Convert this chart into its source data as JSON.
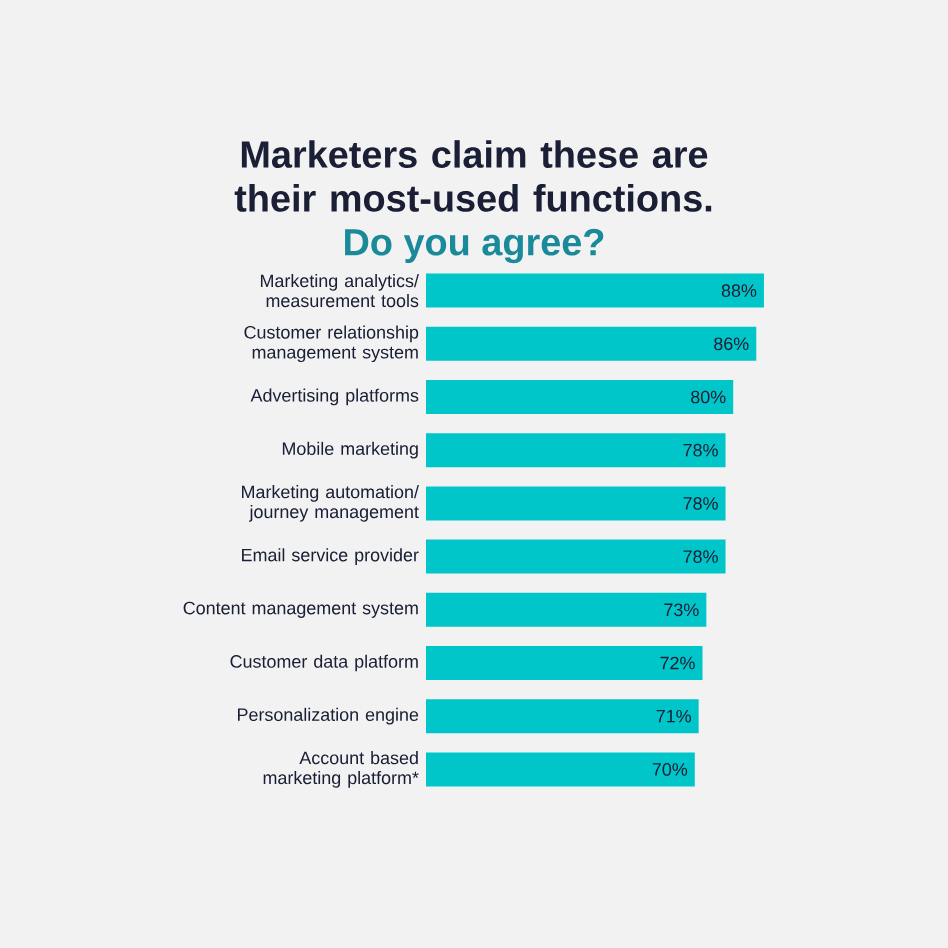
{
  "chart_data": {
    "type": "bar",
    "orientation": "horizontal",
    "title": "Marketers claim these are their most-used functions.",
    "subtitle": "Do you agree?",
    "categories": [
      "Marketing analytics/ measurement tools",
      "Customer relationship management system",
      "Advertising platforms",
      "Mobile marketing",
      "Marketing automation/ journey management",
      "Email service provider",
      "Content management system",
      "Customer data platform",
      "Personalization engine",
      "Account based marketing platform*"
    ],
    "values": [
      88,
      86,
      80,
      78,
      78,
      78,
      73,
      72,
      71,
      70
    ],
    "value_labels": [
      "88%",
      "86%",
      "80%",
      "78%",
      "78%",
      "78%",
      "73%",
      "72%",
      "71%",
      "70%"
    ],
    "color": "#00c6c9"
  }
}
